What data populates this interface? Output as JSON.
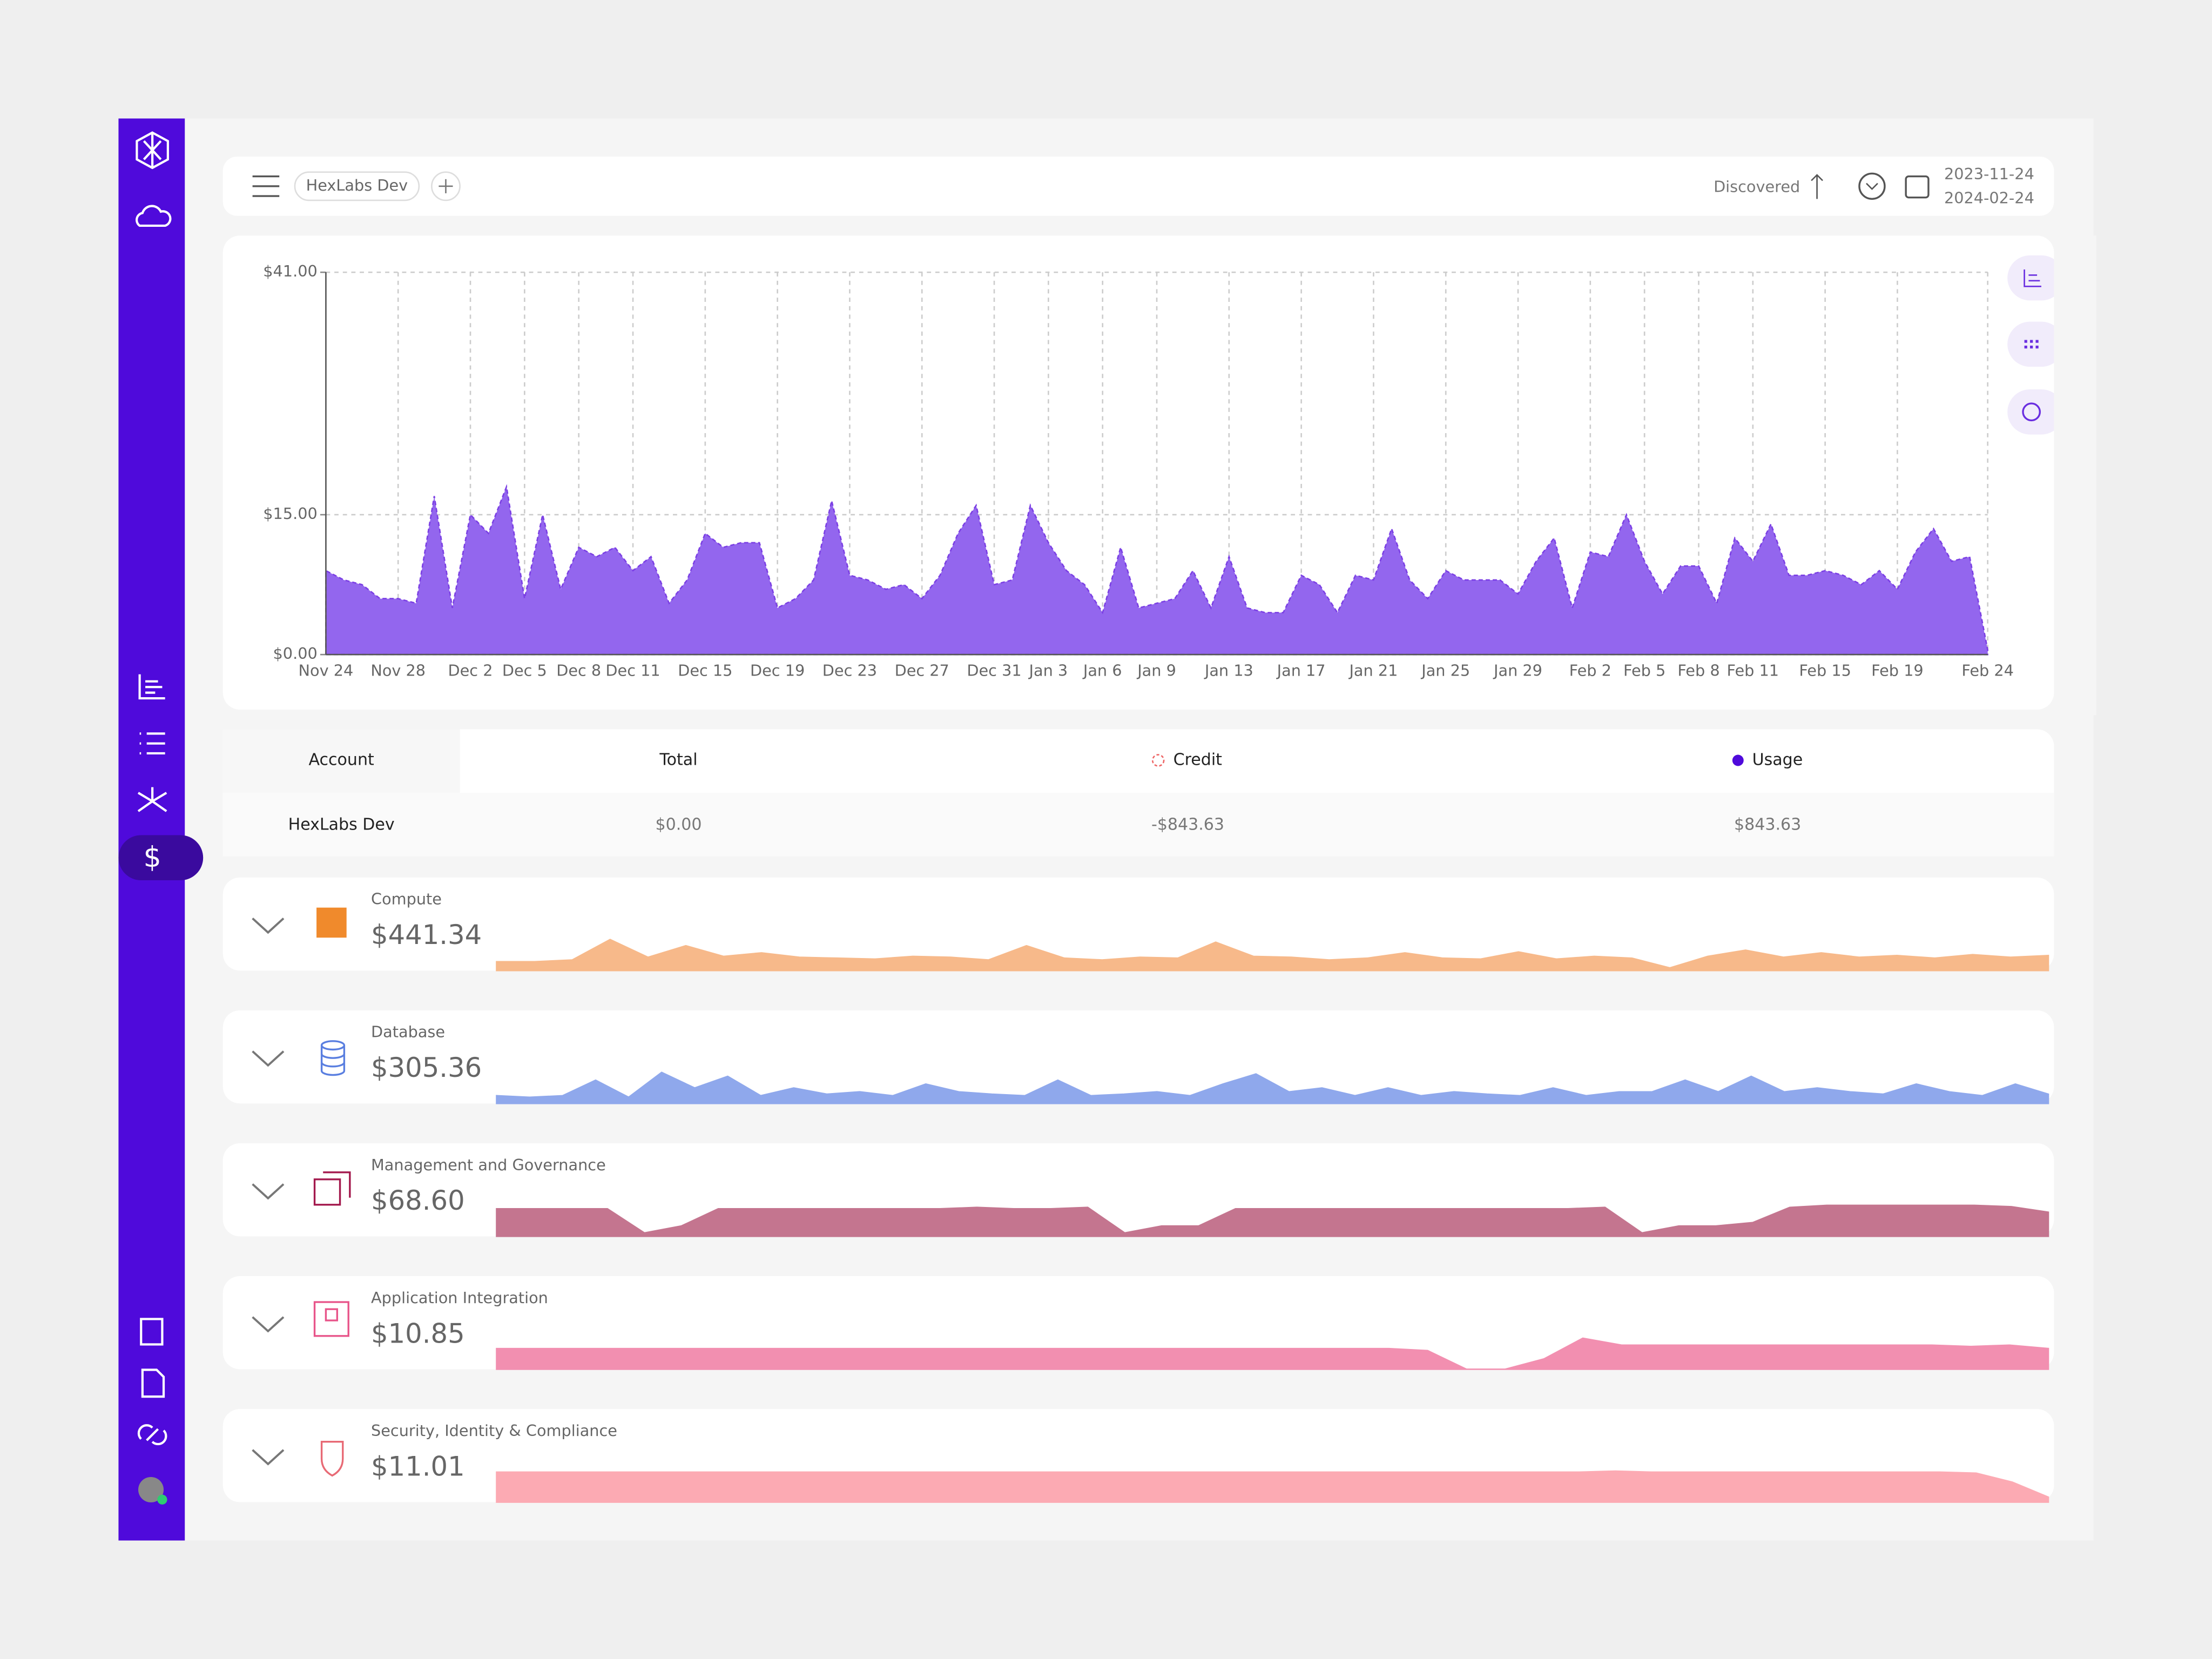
{
  "toolbar": {
    "filter": "HexLabs Dev",
    "sort": "Discovered",
    "date_from": "2023-11-24",
    "date_to": "2024-02-24"
  },
  "chart_data": {
    "type": "area",
    "color": "#9366ee",
    "categories": [
      "Nov 24",
      null,
      null,
      null,
      "Nov 28",
      null,
      null,
      null,
      "Dec 2",
      null,
      null,
      "Dec 5",
      null,
      null,
      "Dec 8",
      null,
      null,
      "Dec 11",
      null,
      null,
      null,
      "Dec 15",
      null,
      null,
      null,
      "Dec 19",
      null,
      null,
      null,
      "Dec 23",
      null,
      null,
      null,
      "Dec 27",
      null,
      null,
      null,
      "Dec 31",
      null,
      null,
      "Jan 3",
      null,
      null,
      "Jan 6",
      null,
      null,
      "Jan 9",
      null,
      null,
      null,
      "Jan 13",
      null,
      null,
      null,
      "Jan 17",
      null,
      null,
      null,
      "Jan 21",
      null,
      null,
      null,
      "Jan 25",
      null,
      null,
      null,
      "Jan 29",
      null,
      null,
      null,
      "Feb 2",
      null,
      null,
      "Feb 5",
      null,
      null,
      "Feb 8",
      null,
      null,
      "Feb 11",
      null,
      null,
      null,
      "Feb 15",
      null,
      null,
      null,
      "Feb 19",
      null,
      null,
      null,
      null,
      "Feb 24"
    ],
    "values": [
      9,
      8,
      7.5,
      6,
      6,
      5.5,
      17,
      5,
      15,
      13,
      18,
      6,
      15,
      7,
      11.5,
      10.5,
      11.5,
      9,
      10.5,
      5.5,
      8,
      13,
      11.5,
      12,
      12,
      5,
      6,
      8,
      16.5,
      8.5,
      8,
      7,
      7.5,
      6,
      8.5,
      13,
      16,
      7.5,
      8,
      16,
      12,
      9,
      7.5,
      4.5,
      11.5,
      5,
      5.5,
      6,
      9,
      5,
      10.5,
      5,
      4.5,
      4.5,
      8.5,
      7.5,
      4.5,
      8.5,
      8,
      13.5,
      8,
      6,
      9,
      8,
      8,
      8,
      6.5,
      10,
      12.5,
      5,
      11,
      10.5,
      15,
      10,
      6.5,
      9.5,
      9.5,
      5.5,
      12.5,
      10,
      14,
      8.5,
      8.5,
      9,
      8.5,
      7.5,
      9,
      7,
      11,
      13.5,
      10,
      10.5,
      0.5
    ],
    "ylim": [
      0,
      41
    ],
    "yticks": [
      {
        "value": 0,
        "label": "$0.00"
      },
      {
        "value": 15,
        "label": "$15.00"
      },
      {
        "value": 41,
        "label": "$41.00"
      }
    ],
    "grid": true
  },
  "table": {
    "columns": [
      "Account",
      "Total",
      "Credit",
      "Usage"
    ],
    "rows": [
      [
        "HexLabs Dev",
        "$0.00",
        "-$843.63",
        "$843.63"
      ]
    ]
  },
  "services": [
    {
      "name": "Compute",
      "total": "$441.34",
      "color": "#f7b98a",
      "values": [
        1,
        1,
        1.2,
        3.5,
        1.5,
        2.8,
        1.6,
        2,
        1.5,
        1.4,
        1.3,
        1.6,
        1.5,
        1.2,
        2.8,
        1.4,
        1.2,
        1.5,
        1.4,
        3.2,
        1.6,
        1.5,
        1.2,
        1.4,
        2,
        1.4,
        1.3,
        2.1,
        1.3,
        1.6,
        1.4,
        0.3,
        1.6,
        2.3,
        1.5,
        2,
        1.5,
        1.7,
        1.4,
        1.8,
        1.5,
        1.7
      ]
    },
    {
      "name": "Database",
      "total": "$305.36",
      "color": "#8fa8ec",
      "values": [
        1,
        0.8,
        1,
        3,
        0.8,
        4,
        2,
        3.5,
        1,
        2,
        1.2,
        1.5,
        1,
        2.5,
        1.5,
        1.2,
        1,
        3,
        1,
        1.2,
        1.5,
        1,
        2.5,
        3.8,
        1.5,
        2,
        1,
        2,
        1,
        1.5,
        1.2,
        1,
        2,
        1,
        1.5,
        1.5,
        3,
        1.5,
        3.5,
        1.5,
        2,
        1.5,
        1.2,
        2.5,
        1.5,
        1,
        2.5,
        1.2
      ]
    },
    {
      "name": "Management and Governance",
      "total": "$68.60",
      "color": "#c4758f",
      "values": [
        4,
        4,
        4,
        4,
        0.5,
        1.5,
        4,
        4,
        4,
        4,
        4,
        4,
        4,
        4.2,
        4,
        4,
        4.2,
        0.5,
        1.5,
        1.5,
        4,
        4,
        4,
        4,
        4,
        4,
        4,
        4,
        4,
        4,
        4.2,
        0.5,
        1.5,
        1.5,
        2,
        4.2,
        4.5,
        4.5,
        4.5,
        4.5,
        4.5,
        4.3,
        3.5
      ]
    },
    {
      "name": "Application Integration",
      "total": "$10.85",
      "color": "#f28fb0",
      "values": [
        3,
        3,
        3,
        3,
        3,
        3,
        3,
        3,
        3,
        3,
        3,
        3,
        3,
        3,
        3,
        3,
        3,
        3,
        3,
        3,
        3,
        3,
        3,
        3,
        2.7,
        0,
        0,
        1.5,
        4.5,
        3.5,
        3.5,
        3.5,
        3.5,
        3.5,
        3.5,
        3.5,
        3.5,
        3.5,
        3.3,
        3.5,
        3
      ]
    },
    {
      "name": "Security, Identity & Compliance",
      "total": "$11.01",
      "color": "#fcaab3",
      "values": [
        3,
        3,
        3,
        3,
        3,
        3,
        3,
        3,
        3,
        3,
        3,
        3,
        3,
        3,
        3,
        3,
        3,
        3,
        3,
        3,
        3,
        3,
        3,
        3,
        3,
        3,
        3,
        3,
        3,
        3,
        3,
        3.1,
        3,
        3,
        3,
        3,
        3,
        3,
        3,
        3,
        3,
        2.9,
        2,
        0.5
      ]
    }
  ]
}
